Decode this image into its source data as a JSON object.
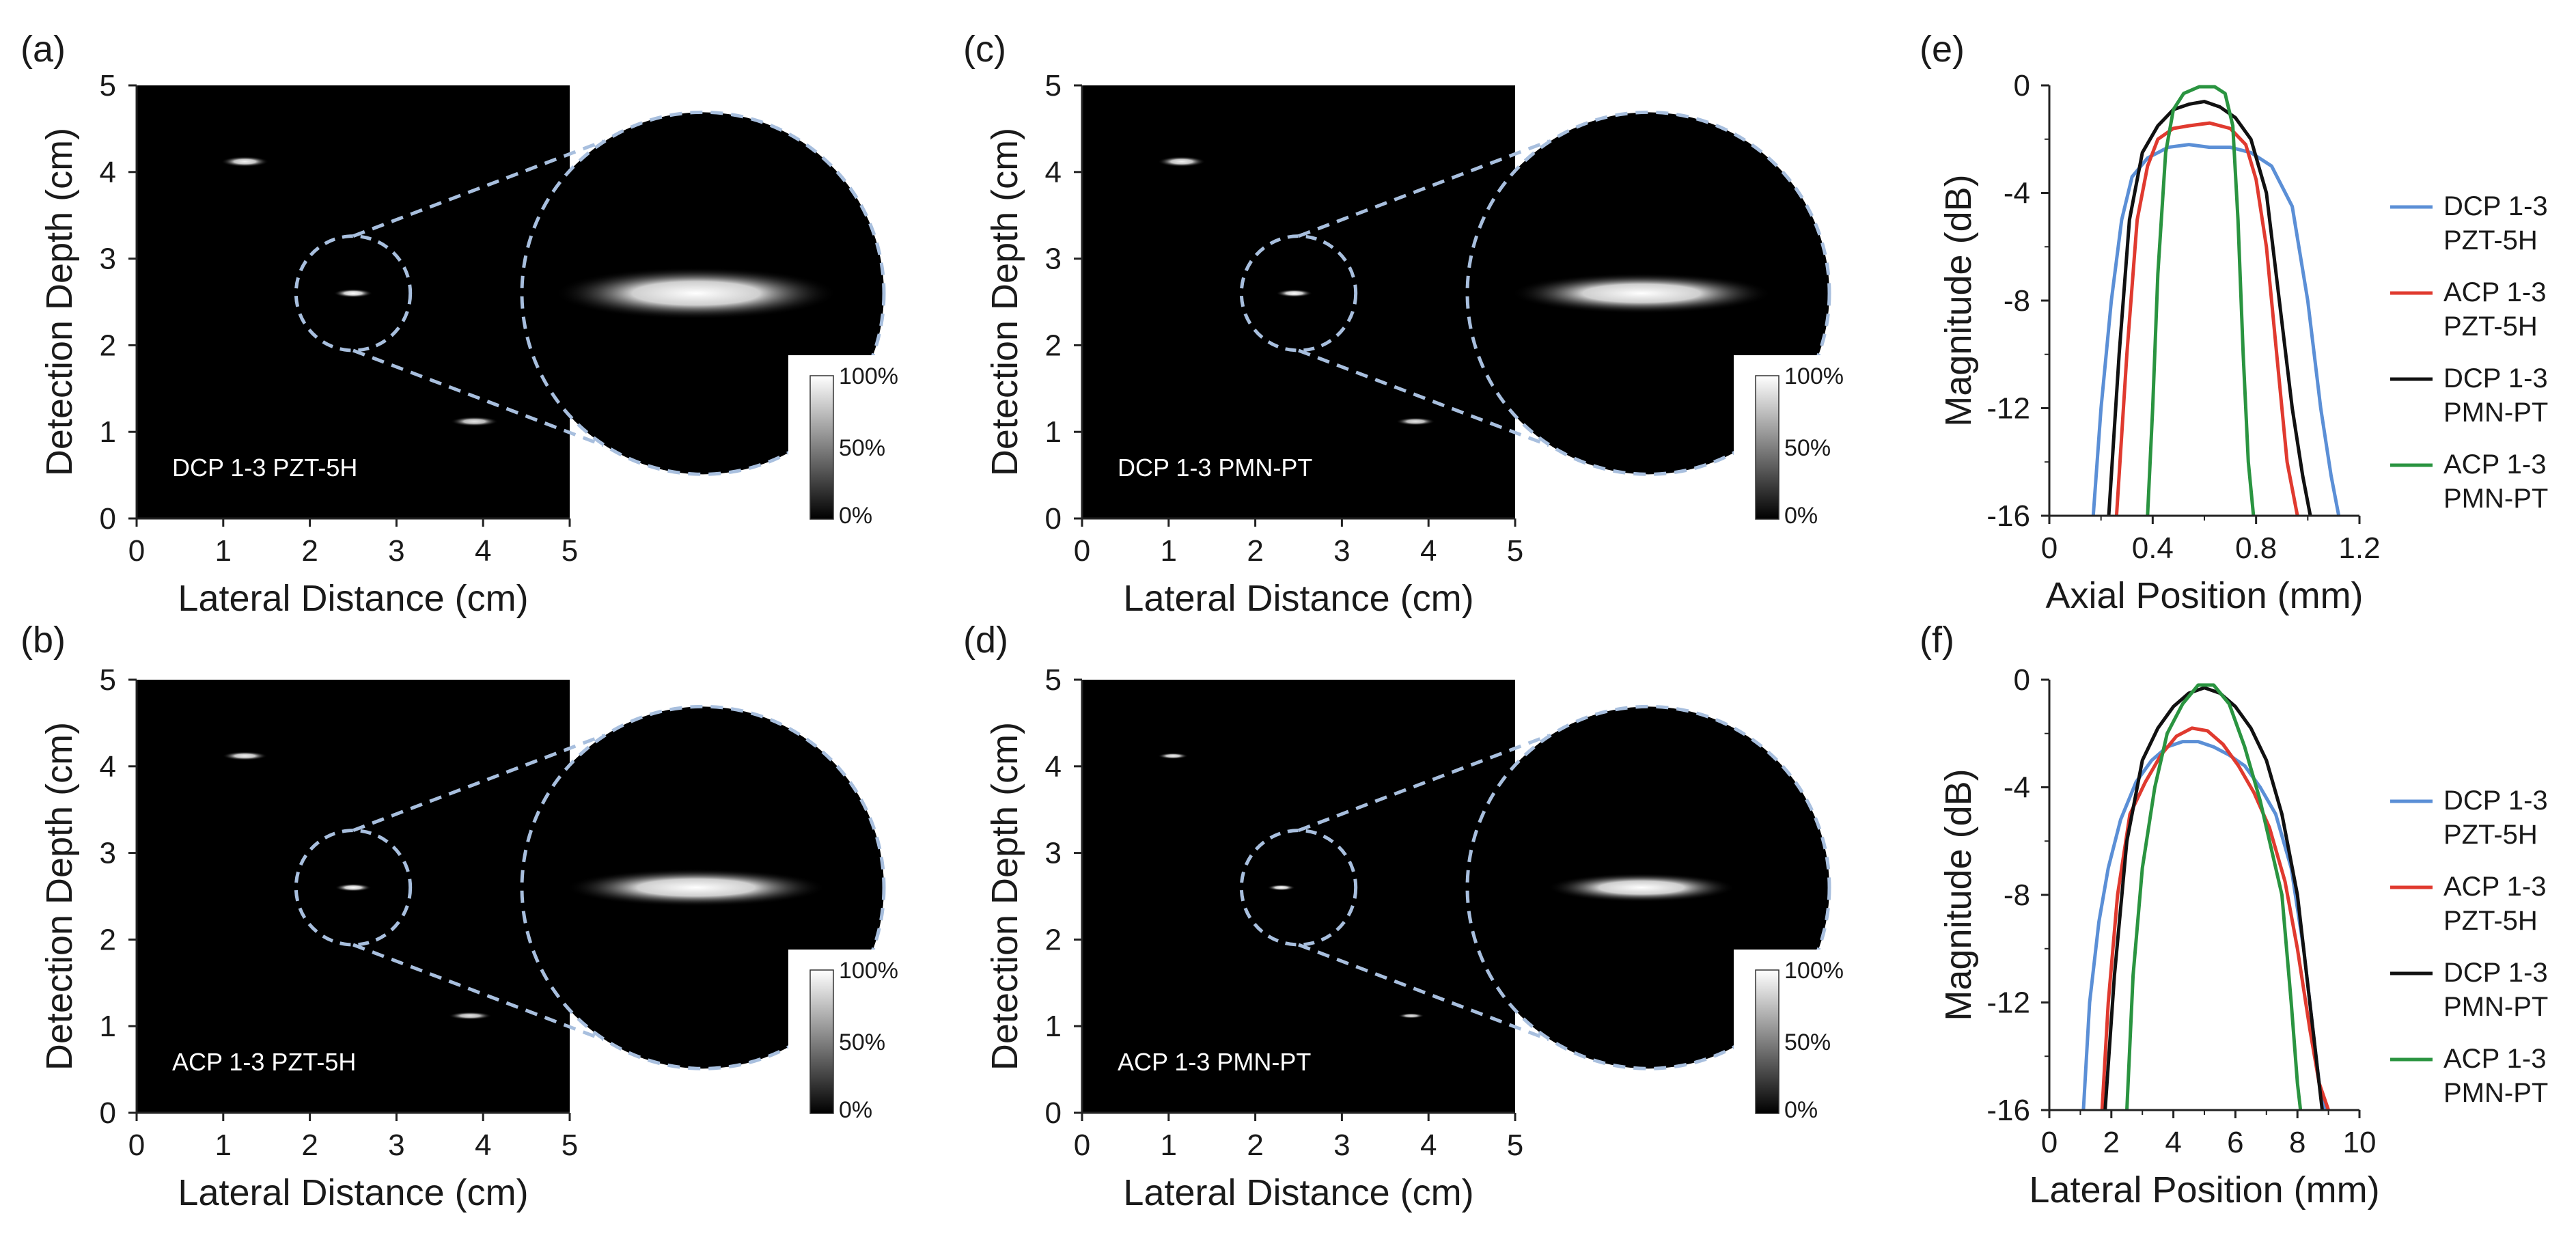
{
  "figure": {
    "panels": [
      {
        "id": "a",
        "label": "(a)",
        "image_label": "DCP 1-3 PZT-5H"
      },
      {
        "id": "b",
        "label": "(b)",
        "image_label": "ACP 1-3 PZT-5H"
      },
      {
        "id": "c",
        "label": "(c)",
        "image_label": "DCP 1-3 PMN-PT"
      },
      {
        "id": "d",
        "label": "(d)",
        "image_label": "ACP 1-3 PMN-PT"
      },
      {
        "id": "e",
        "label": "(e)"
      },
      {
        "id": "f",
        "label": "(f)"
      }
    ],
    "image_axes": {
      "xlabel": "Lateral Distance (cm)",
      "ylabel": "Detection Depth (cm)",
      "xticks": [
        "0",
        "1",
        "2",
        "3",
        "4",
        "5"
      ],
      "yticks": [
        "0",
        "1",
        "2",
        "3",
        "4",
        "5"
      ]
    },
    "colorbar": {
      "ticks": [
        "100%",
        "50%",
        "0%"
      ],
      "colormap": "grayscale"
    },
    "colors": {
      "dcp_pzt": "#5b8fd6",
      "acp_pzt": "#e03a2f",
      "dcp_pmn": "#111111",
      "acp_pmn": "#2a9440",
      "zoom_outline": "#a8bfde"
    }
  },
  "chart_data": [
    {
      "panel": "e",
      "type": "line",
      "xlabel": "Axial Position (mm)",
      "ylabel": "Magnitude (dB)",
      "xlim": [
        0,
        1.2
      ],
      "ylim": [
        -16,
        0
      ],
      "xticks": [
        "0",
        "0.4",
        "0.8",
        "1.2"
      ],
      "yticks": [
        "0",
        "-4",
        "-8",
        "-12",
        "-16"
      ],
      "legend": "right",
      "series": [
        {
          "name": "DCP 1-3 PZT-5H",
          "line1": "DCP 1-3",
          "line2": "PZT-5H",
          "color": "#5b8fd6",
          "x": [
            0.17,
            0.2,
            0.24,
            0.28,
            0.32,
            0.38,
            0.46,
            0.54,
            0.62,
            0.7,
            0.78,
            0.86,
            0.94,
            1.0,
            1.05,
            1.09,
            1.12
          ],
          "y": [
            -16,
            -12,
            -8,
            -5,
            -3.4,
            -2.7,
            -2.3,
            -2.2,
            -2.3,
            -2.3,
            -2.5,
            -3.0,
            -4.5,
            -8,
            -12,
            -14.5,
            -16
          ]
        },
        {
          "name": "ACP 1-3 PZT-5H",
          "line1": "ACP 1-3",
          "line2": "PZT-5H",
          "color": "#e03a2f",
          "x": [
            0.26,
            0.3,
            0.34,
            0.38,
            0.42,
            0.48,
            0.54,
            0.62,
            0.7,
            0.76,
            0.8,
            0.84,
            0.88,
            0.92,
            0.96
          ],
          "y": [
            -16,
            -10,
            -5,
            -3,
            -2.0,
            -1.6,
            -1.5,
            -1.4,
            -1.6,
            -2.2,
            -3.5,
            -6,
            -10,
            -14,
            -16
          ]
        },
        {
          "name": "DCP 1-3 PMN-PT",
          "line1": "DCP 1-3",
          "line2": "PMN-PT",
          "color": "#111111",
          "x": [
            0.23,
            0.27,
            0.31,
            0.36,
            0.42,
            0.48,
            0.54,
            0.6,
            0.66,
            0.72,
            0.78,
            0.84,
            0.89,
            0.94,
            0.98,
            1.01
          ],
          "y": [
            -16,
            -10,
            -5,
            -2.5,
            -1.5,
            -0.9,
            -0.7,
            -0.6,
            -0.8,
            -1.2,
            -2.0,
            -4,
            -8,
            -12,
            -14.5,
            -16
          ]
        },
        {
          "name": "ACP 1-3 PMN-PT",
          "line1": "ACP 1-3",
          "line2": "PMN-PT",
          "color": "#2a9440",
          "x": [
            0.38,
            0.4,
            0.42,
            0.45,
            0.48,
            0.52,
            0.58,
            0.64,
            0.68,
            0.71,
            0.73,
            0.75,
            0.77,
            0.79
          ],
          "y": [
            -16,
            -12,
            -7,
            -2.5,
            -0.9,
            -0.3,
            -0.05,
            -0.05,
            -0.3,
            -1.5,
            -5,
            -10,
            -14,
            -16
          ]
        }
      ]
    },
    {
      "panel": "f",
      "type": "line",
      "xlabel": "Lateral  Position (mm)",
      "ylabel": "Magnitude (dB)",
      "xlim": [
        0,
        10
      ],
      "ylim": [
        -16,
        0
      ],
      "xticks": [
        "0",
        "2",
        "4",
        "6",
        "8",
        "10"
      ],
      "yticks": [
        "0",
        "-4",
        "-8",
        "-12",
        "-16"
      ],
      "legend": "right",
      "series": [
        {
          "name": "DCP 1-3 PZT-5H",
          "line1": "DCP 1-3",
          "line2": "PZT-5H",
          "color": "#5b8fd6",
          "x": [
            1.1,
            1.3,
            1.6,
            1.9,
            2.3,
            2.8,
            3.3,
            3.8,
            4.3,
            4.8,
            5.3,
            5.8,
            6.3,
            6.8,
            7.3,
            7.8,
            8.2,
            8.5,
            8.7,
            8.9
          ],
          "y": [
            -16,
            -12,
            -9,
            -7,
            -5.2,
            -3.8,
            -3.0,
            -2.5,
            -2.3,
            -2.3,
            -2.5,
            -2.8,
            -3.2,
            -4.0,
            -5.0,
            -7,
            -10,
            -13,
            -15,
            -16
          ]
        },
        {
          "name": "ACP 1-3 PZT-5H",
          "line1": "ACP 1-3",
          "line2": "PZT-5H",
          "color": "#e03a2f",
          "x": [
            1.7,
            1.9,
            2.2,
            2.6,
            3.1,
            3.6,
            4.1,
            4.6,
            5.1,
            5.6,
            6.1,
            6.6,
            7.1,
            7.6,
            8.0,
            8.4,
            8.7,
            9.0
          ],
          "y": [
            -16,
            -12,
            -8,
            -5.0,
            -3.8,
            -2.8,
            -2.1,
            -1.8,
            -1.9,
            -2.4,
            -3.2,
            -4.2,
            -5.5,
            -7.5,
            -10,
            -13,
            -15,
            -16
          ]
        },
        {
          "name": "DCP 1-3 PMN-PT",
          "line1": "DCP 1-3",
          "line2": "PMN-PT",
          "color": "#111111",
          "x": [
            1.8,
            2.1,
            2.5,
            3.0,
            3.5,
            4.0,
            4.5,
            5.0,
            5.5,
            6.0,
            6.5,
            7.0,
            7.5,
            8.0,
            8.3,
            8.6,
            8.8
          ],
          "y": [
            -16,
            -11,
            -6,
            -3.0,
            -1.8,
            -1.0,
            -0.5,
            -0.3,
            -0.5,
            -1.0,
            -1.8,
            -3.0,
            -5.0,
            -8,
            -11,
            -14,
            -16
          ]
        },
        {
          "name": "ACP 1-3 PMN-PT",
          "line1": "ACP 1-3",
          "line2": "PMN-PT",
          "color": "#2a9440",
          "x": [
            2.5,
            2.7,
            3.0,
            3.4,
            3.8,
            4.3,
            4.8,
            5.3,
            5.8,
            6.3,
            6.8,
            7.2,
            7.5,
            7.8,
            8.0,
            8.1
          ],
          "y": [
            -16,
            -11,
            -7,
            -4.0,
            -2.0,
            -0.9,
            -0.2,
            -0.2,
            -0.9,
            -2.5,
            -4.5,
            -6.5,
            -8,
            -12,
            -15,
            -16
          ]
        }
      ]
    }
  ]
}
